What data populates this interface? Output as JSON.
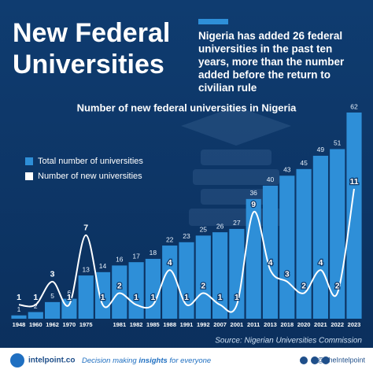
{
  "title": "New Federal Universities",
  "subtitle": "Nigeria has added 26 federal universities in the past ten years, more than the number added before the return to civilian rule",
  "chart_data": {
    "type": "bar",
    "title": "Number of new federal universities in Nigeria",
    "categories": [
      "1948",
      "1960",
      "1962",
      "1970",
      "1975",
      null,
      "1981",
      "1982",
      "1985",
      "1988",
      "1991",
      "1992",
      "2007",
      "2001",
      "2011",
      "2013",
      "2018",
      "2020",
      "2021",
      "2022",
      "2023"
    ],
    "series": [
      {
        "name": "Total number of universities",
        "color": "#2e8fd8",
        "type": "bar",
        "values": [
          1,
          2,
          5,
          6,
          13,
          14,
          16,
          17,
          18,
          22,
          23,
          25,
          26,
          27,
          36,
          40,
          43,
          45,
          49,
          51,
          62
        ]
      },
      {
        "name": "Number of new universities",
        "color": "#ffffff",
        "type": "line",
        "axis": "y2",
        "values": [
          1,
          1,
          3,
          1,
          7,
          1,
          2,
          1,
          1,
          4,
          1,
          2,
          1,
          1,
          9,
          4,
          3,
          2,
          4,
          2,
          11
        ]
      }
    ],
    "ylim": [
      0,
      62
    ],
    "y2lim": [
      0,
      11
    ],
    "source": "Source: Nigerian Universities Commission"
  },
  "footer": {
    "site": "intelpoint.co",
    "tagline": [
      "Decision making ",
      "insights",
      " for everyone"
    ],
    "handle": "@TheIntelpoint"
  }
}
